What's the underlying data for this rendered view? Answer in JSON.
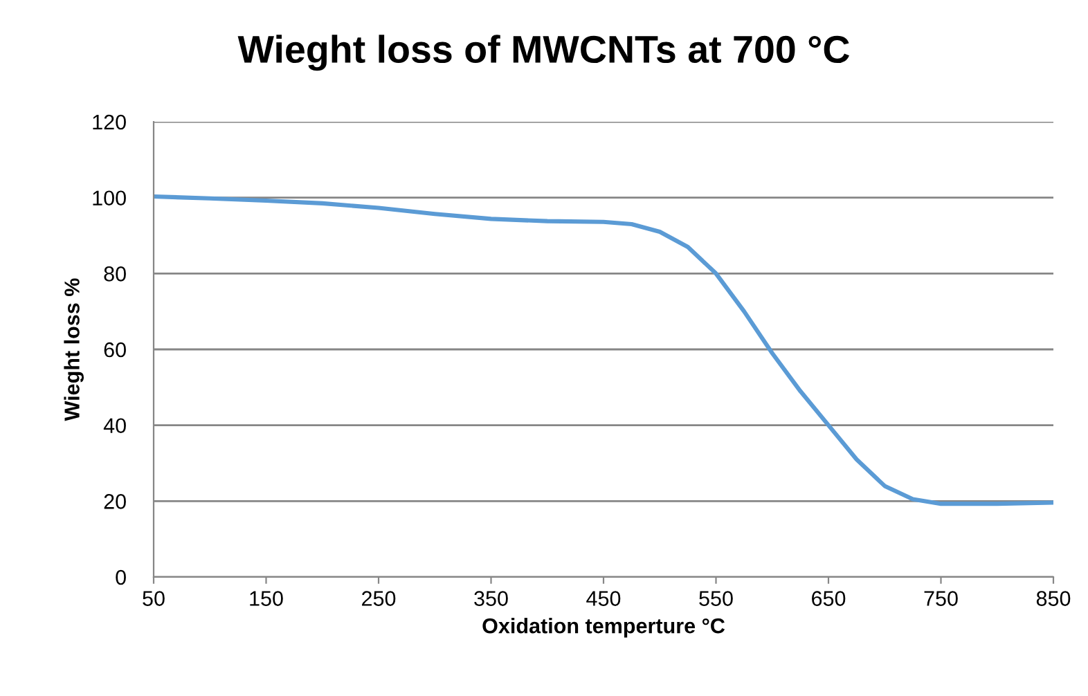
{
  "chart_data": {
    "type": "line",
    "title": "Wieght loss of MWCNTs at 700 °C",
    "xlabel": "Oxidation temperture °C",
    "ylabel": "Wieght loss %",
    "x": [
      50,
      100,
      150,
      200,
      250,
      300,
      350,
      400,
      450,
      475,
      500,
      525,
      550,
      575,
      600,
      625,
      650,
      675,
      700,
      725,
      750,
      800,
      850
    ],
    "series": [
      {
        "color": "#5b9bd5",
        "values": [
          100.3,
          99.8,
          99.2,
          98.5,
          97.3,
          95.7,
          94.4,
          93.8,
          93.6,
          93,
          91,
          87,
          80,
          70,
          59,
          49,
          40,
          31,
          24,
          20.5,
          19.3,
          19.3,
          19.6
        ]
      }
    ],
    "xlim": [
      50,
      850
    ],
    "xticks": [
      50,
      150,
      250,
      350,
      450,
      550,
      650,
      750,
      850
    ],
    "ylim": [
      0,
      120
    ],
    "yticks": [
      0,
      20,
      40,
      60,
      80,
      100,
      120
    ],
    "grid": "y",
    "legend": false,
    "marker": "none",
    "line_style": "solid"
  }
}
